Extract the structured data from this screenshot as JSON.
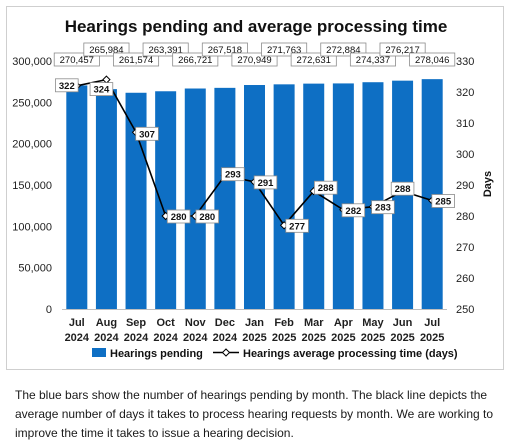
{
  "chart_data": {
    "type": "bar",
    "title": "Hearings pending and average processing time",
    "categories": [
      [
        "Jul",
        "2024"
      ],
      [
        "Aug",
        "2024"
      ],
      [
        "Sep",
        "2024"
      ],
      [
        "Oct",
        "2024"
      ],
      [
        "Nov",
        "2024"
      ],
      [
        "Dec",
        "2024"
      ],
      [
        "Jan",
        "2025"
      ],
      [
        "Feb",
        "2025"
      ],
      [
        "Mar",
        "2025"
      ],
      [
        "Apr",
        "2025"
      ],
      [
        "May",
        "2025"
      ],
      [
        "Jun",
        "2025"
      ],
      [
        "Jul",
        "2025"
      ]
    ],
    "series": [
      {
        "name": "Hearings pending",
        "kind": "bar",
        "axis": "left",
        "color": "#0E6FC4",
        "values": [
          270457,
          265984,
          261574,
          263391,
          266721,
          267518,
          270949,
          271763,
          272631,
          272884,
          274337,
          276217,
          278046
        ],
        "labels": [
          "270,457",
          "265,984",
          "261,574",
          "263,391",
          "266,721",
          "267,518",
          "270,949",
          "271,763",
          "272,631",
          "272,884",
          "274,337",
          "276,217",
          "278,046"
        ]
      },
      {
        "name": "Hearings average processing time (days)",
        "kind": "line",
        "axis": "right",
        "color": "#000000",
        "values": [
          322,
          324,
          307,
          280,
          280,
          293,
          291,
          277,
          288,
          282,
          283,
          288,
          285
        ],
        "labels": [
          "322",
          "324",
          "307",
          "280",
          "280",
          "293",
          "291",
          "277",
          "288",
          "282",
          "283",
          "288",
          "285"
        ]
      }
    ],
    "y_left": {
      "min": 0,
      "max": 300000,
      "ticks": [
        0,
        50000,
        100000,
        150000,
        200000,
        250000,
        300000
      ],
      "tick_labels": [
        "0",
        "50,000",
        "100,000",
        "150,000",
        "200,000",
        "250,000",
        "300,000"
      ]
    },
    "y_right": {
      "label": "Days",
      "min": 250,
      "max": 330,
      "ticks": [
        250,
        260,
        270,
        280,
        290,
        300,
        310,
        320,
        330
      ],
      "tick_labels": [
        "250",
        "260",
        "270",
        "280",
        "290",
        "300",
        "310",
        "320",
        "330"
      ]
    },
    "grid": false,
    "legend": "bottom"
  },
  "caption": "The blue bars show the number of hearings pending by month. The black line depicts the average number of days it takes to process hearing requests by month. We are working to improve the time it takes to issue a hearing decision."
}
